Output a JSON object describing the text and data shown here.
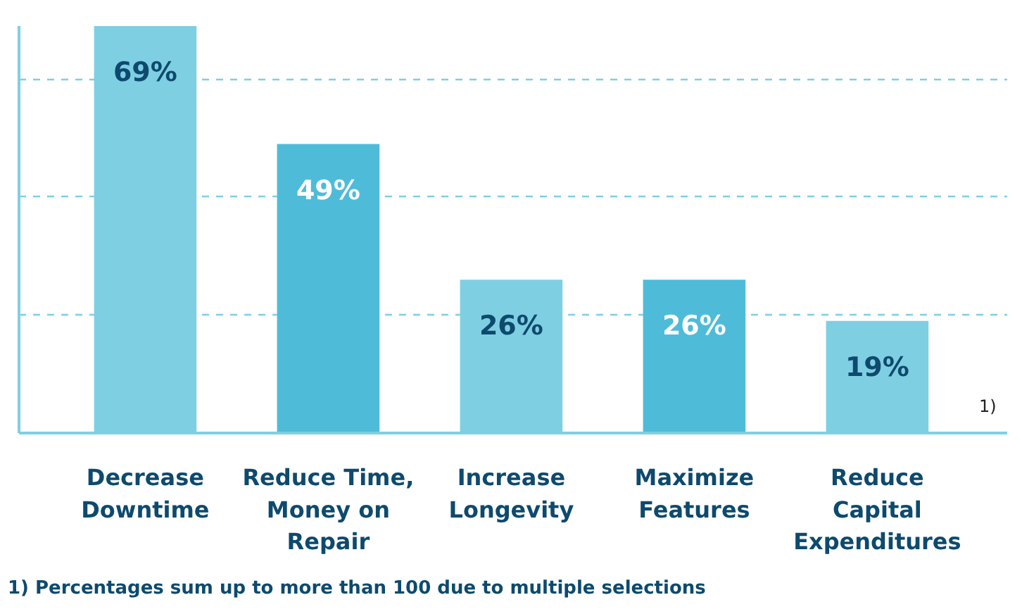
{
  "chart_data": {
    "type": "bar",
    "categories": [
      "Decrease Downtime",
      "Reduce Time, Money on Repair",
      "Increase Longevity",
      "Maximize Features",
      "Reduce Capital Expenditures"
    ],
    "values": [
      69,
      49,
      26,
      26,
      19
    ],
    "colors": [
      "#7fcfe2",
      "#4ebcd8",
      "#7fcfe2",
      "#4ebcd8",
      "#7fcfe2"
    ],
    "value_labels": [
      "69%",
      "49%",
      "26%",
      "26%",
      "19%"
    ],
    "ylim": [
      0,
      69
    ],
    "yticks": [
      {
        "value": 20,
        "label": null
      },
      {
        "value": 40,
        "label": null
      },
      {
        "value": 60,
        "label": null
      }
    ],
    "grid": "y",
    "tick_labels": "x",
    "annotations": [
      "1)",
      "1) Percentages sum up to more than 100 due to multiple selections"
    ]
  }
}
